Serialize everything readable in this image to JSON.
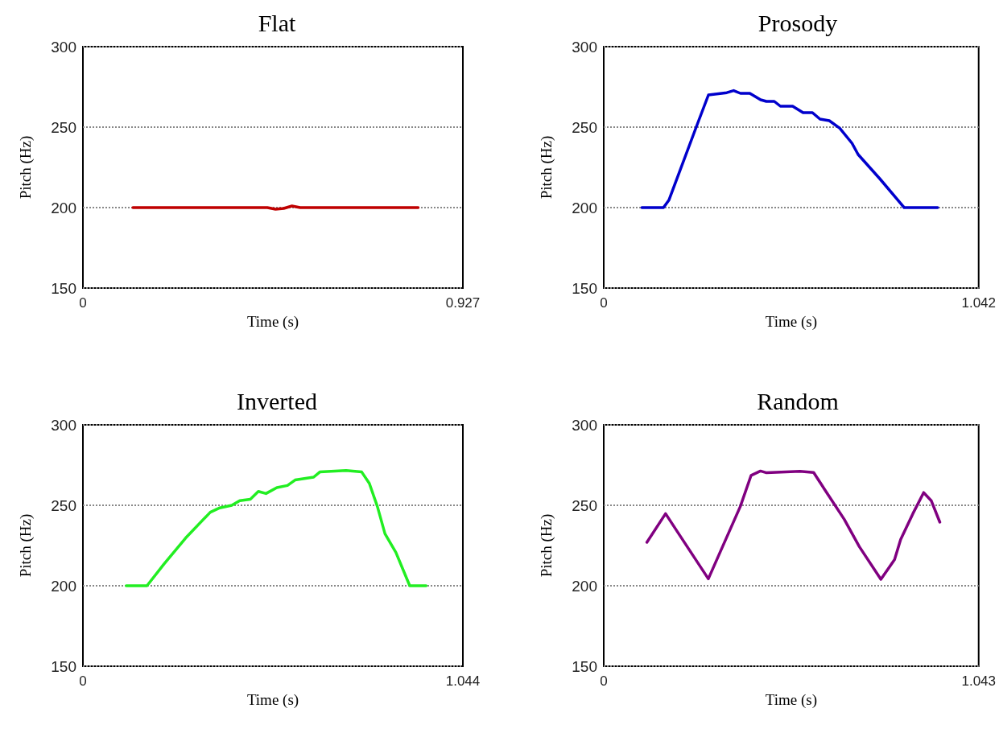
{
  "chart_data": [
    {
      "type": "line",
      "title": "Flat",
      "xlabel": "Time (s)",
      "ylabel": "Pitch (Hz)",
      "xlim": [
        0,
        0.927
      ],
      "xticks": [
        0,
        0.927
      ],
      "ylim": [
        150,
        300
      ],
      "yticks": [
        150,
        200,
        250,
        300
      ],
      "grid": "y",
      "line_style": "solid",
      "color": "#c00000",
      "x": [
        0.122,
        0.3,
        0.45,
        0.47,
        0.49,
        0.51,
        0.53,
        0.7,
        0.818
      ],
      "values": [
        200,
        200,
        200,
        199,
        199.5,
        201,
        200,
        200,
        200
      ]
    },
    {
      "type": "line",
      "title": "Prosody",
      "xlabel": "Time (s)",
      "ylabel": "Pitch (Hz)",
      "xlim": [
        0,
        1.042
      ],
      "xticks": [
        0,
        1.042
      ],
      "ylim": [
        150,
        300
      ],
      "yticks": [
        150,
        200,
        250,
        300
      ],
      "grid": "y",
      "line_style": "solid",
      "color": "#0000cc",
      "x": [
        0.106,
        0.166,
        0.181,
        0.257,
        0.291,
        0.342,
        0.361,
        0.38,
        0.406,
        0.436,
        0.452,
        0.474,
        0.491,
        0.525,
        0.554,
        0.58,
        0.601,
        0.627,
        0.656,
        0.69,
        0.707,
        0.767,
        0.835,
        0.928
      ],
      "values": [
        200,
        200,
        204.6,
        250,
        270,
        271.4,
        272.7,
        271,
        271,
        267,
        266,
        266,
        263,
        263,
        259,
        259,
        255,
        254,
        249.3,
        240,
        233,
        218,
        200,
        200
      ]
    },
    {
      "type": "line",
      "title": "Inverted",
      "xlabel": "Time (s)",
      "ylabel": "Pitch (Hz)",
      "xlim": [
        0,
        1.044
      ],
      "xticks": [
        0,
        1.044
      ],
      "ylim": [
        150,
        300
      ],
      "yticks": [
        150,
        200,
        250,
        300
      ],
      "grid": "y",
      "line_style": "solid",
      "color": "#22ee22",
      "x": [
        0.119,
        0.176,
        0.223,
        0.282,
        0.35,
        0.376,
        0.409,
        0.431,
        0.46,
        0.482,
        0.503,
        0.533,
        0.562,
        0.583,
        0.634,
        0.651,
        0.723,
        0.766,
        0.787,
        0.809,
        0.83,
        0.86,
        0.898,
        0.943
      ],
      "values": [
        200,
        200,
        213.6,
        229.6,
        245.7,
        248.4,
        250,
        252.9,
        253.8,
        258.6,
        257.3,
        261,
        262.3,
        265.7,
        267.5,
        270.7,
        271.6,
        270.7,
        263.6,
        249.3,
        232.3,
        220.7,
        200,
        200
      ]
    },
    {
      "type": "line",
      "title": "Random",
      "xlabel": "Time (s)",
      "ylabel": "Pitch (Hz)",
      "xlim": [
        0,
        1.043
      ],
      "xticks": [
        0,
        1.043
      ],
      "ylim": [
        150,
        300
      ],
      "yticks": [
        150,
        200,
        250,
        300
      ],
      "grid": "y",
      "line_style": "solid",
      "color": "#800080",
      "x": [
        0.12,
        0.172,
        0.206,
        0.291,
        0.38,
        0.41,
        0.436,
        0.453,
        0.546,
        0.584,
        0.614,
        0.669,
        0.711,
        0.771,
        0.809,
        0.826,
        0.86,
        0.89,
        0.911,
        0.935
      ],
      "values": [
        227,
        244.8,
        233.2,
        204.3,
        249.3,
        268.6,
        271.3,
        270.2,
        271.1,
        270.4,
        260,
        241.3,
        224.3,
        204,
        216.3,
        228.8,
        244.8,
        257.9,
        252.9,
        239.5
      ]
    }
  ]
}
